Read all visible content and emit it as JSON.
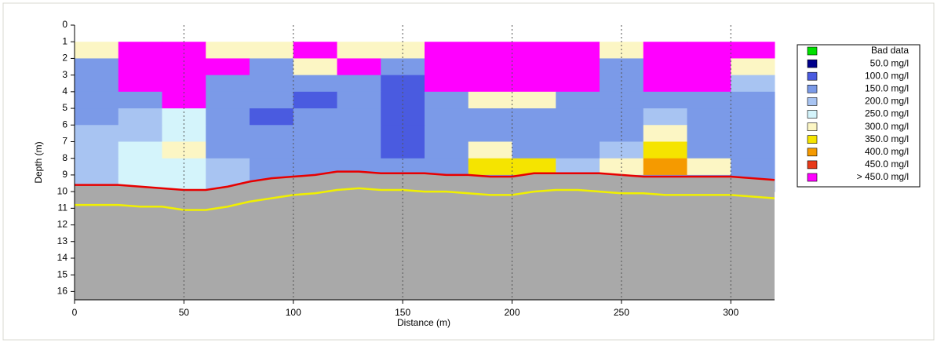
{
  "chart_data": {
    "type": "heatmap",
    "x_label": "Distance (m)",
    "y_label": "Depth (m)",
    "xlim": [
      0,
      320
    ],
    "xticks": [
      0,
      50,
      100,
      150,
      200,
      250,
      300
    ],
    "ylim": [
      0,
      16.5
    ],
    "y_reversed": true,
    "yticks": [
      0,
      1,
      2,
      3,
      4,
      5,
      6,
      7,
      8,
      9,
      10,
      11,
      12,
      13,
      14,
      15,
      16
    ],
    "grid": "x",
    "x_bins": [
      0,
      20,
      40,
      60,
      80,
      100,
      120,
      140,
      160,
      180,
      200,
      220,
      240,
      260,
      280,
      300,
      320
    ],
    "y_bins": [
      1,
      2,
      3,
      4,
      5,
      6,
      7,
      8,
      9,
      10
    ],
    "z": [
      [
        300,
        500,
        500,
        300,
        300,
        500,
        300,
        300,
        500,
        500,
        500,
        500,
        300,
        500,
        500,
        500
      ],
      [
        150,
        500,
        500,
        500,
        150,
        300,
        500,
        150,
        500,
        500,
        500,
        500,
        150,
        500,
        500,
        300
      ],
      [
        150,
        500,
        500,
        150,
        150,
        150,
        150,
        100,
        500,
        500,
        500,
        500,
        150,
        500,
        500,
        200
      ],
      [
        150,
        150,
        500,
        150,
        150,
        100,
        150,
        100,
        150,
        300,
        300,
        150,
        150,
        150,
        150,
        150
      ],
      [
        150,
        200,
        250,
        150,
        100,
        150,
        150,
        100,
        150,
        150,
        150,
        150,
        150,
        200,
        150,
        150
      ],
      [
        200,
        200,
        250,
        150,
        150,
        150,
        150,
        100,
        150,
        150,
        150,
        150,
        150,
        300,
        150,
        150
      ],
      [
        200,
        250,
        300,
        150,
        150,
        150,
        150,
        100,
        150,
        300,
        150,
        150,
        200,
        350,
        150,
        150
      ],
      [
        200,
        250,
        250,
        200,
        150,
        150,
        150,
        150,
        150,
        350,
        350,
        200,
        300,
        400,
        300,
        150
      ],
      [
        200,
        250,
        250,
        200,
        150,
        150,
        150,
        150,
        150,
        150,
        150,
        150,
        150,
        150,
        150,
        150
      ]
    ],
    "legend": [
      {
        "label": "Bad data",
        "color": "#00e000"
      },
      {
        "value": 50,
        "label": "50.0 mg/l",
        "color": "#00008b"
      },
      {
        "value": 100,
        "label": "100.0 mg/l",
        "color": "#4a5be0"
      },
      {
        "value": 150,
        "label": "150.0 mg/l",
        "color": "#7b9ae8"
      },
      {
        "value": 200,
        "label": "200.0 mg/l",
        "color": "#a8c4f2"
      },
      {
        "value": 250,
        "label": "250.0 mg/l",
        "color": "#d4f4fb"
      },
      {
        "value": 300,
        "label": "300.0 mg/l",
        "color": "#fcf6c4"
      },
      {
        "value": 350,
        "label": "350.0 mg/l",
        "color": "#f5e400"
      },
      {
        "value": 400,
        "label": "400.0 mg/l",
        "color": "#f59a00"
      },
      {
        "value": 450,
        "label": "450.0 mg/l",
        "color": "#e83a1a"
      },
      {
        "value": 450,
        "label": ">  450.0 mg/l",
        "color": "#ff00ff"
      }
    ],
    "lines_x": [
      0,
      10,
      20,
      30,
      40,
      50,
      60,
      70,
      80,
      90,
      100,
      110,
      120,
      130,
      140,
      150,
      160,
      170,
      180,
      190,
      200,
      210,
      220,
      230,
      240,
      250,
      260,
      270,
      280,
      290,
      300,
      310,
      320
    ],
    "series": [
      {
        "color": "#e80000",
        "values": [
          9.6,
          9.6,
          9.6,
          9.7,
          9.8,
          9.9,
          9.9,
          9.7,
          9.4,
          9.2,
          9.1,
          9.0,
          8.8,
          8.8,
          8.9,
          8.9,
          8.9,
          9.0,
          9.0,
          9.1,
          9.1,
          8.9,
          8.9,
          8.9,
          8.9,
          9.0,
          9.1,
          9.1,
          9.1,
          9.1,
          9.1,
          9.2,
          9.3
        ]
      },
      {
        "color": "#f0f000",
        "values": [
          10.8,
          10.8,
          10.8,
          10.9,
          10.9,
          11.1,
          11.1,
          10.9,
          10.6,
          10.4,
          10.2,
          10.1,
          9.9,
          9.8,
          9.9,
          9.9,
          10.0,
          10.0,
          10.1,
          10.2,
          10.2,
          10.0,
          9.9,
          9.9,
          10.0,
          10.1,
          10.1,
          10.2,
          10.2,
          10.2,
          10.2,
          10.3,
          10.4
        ]
      }
    ],
    "bottom_color": "#a9a9a9"
  }
}
